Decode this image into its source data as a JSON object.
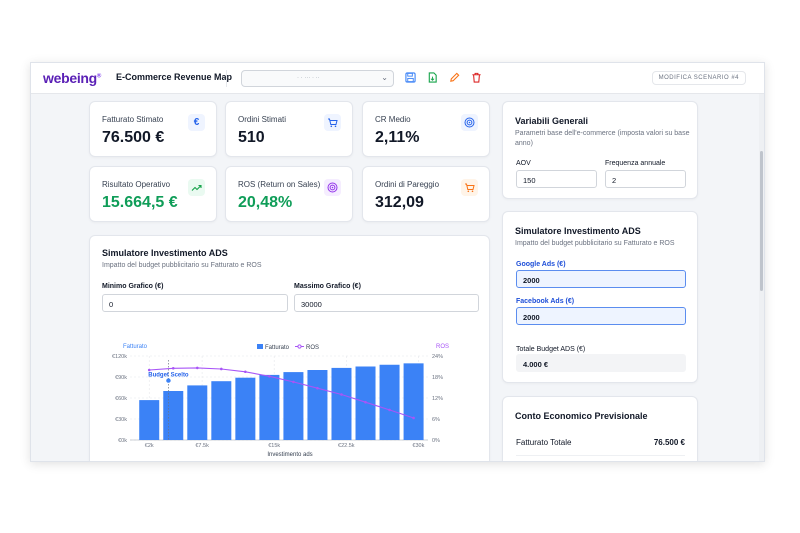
{
  "header": {
    "logo": "webeing",
    "logo_mark": "®",
    "title": "E-Commerce Revenue Map",
    "selector_text": "· · ··· · ··",
    "scenario_button": "MODIFICA SCENARIO #4"
  },
  "kpis": [
    {
      "label": "Fatturato Stimato",
      "value": "76.500 €",
      "icon": "euro-icon",
      "icon_char": "€",
      "color": "#111827"
    },
    {
      "label": "Ordini Stimati",
      "value": "510",
      "icon": "cart-icon",
      "icon_char": "🛒",
      "color": "#111827"
    },
    {
      "label": "CR Medio",
      "value": "2,11%",
      "icon": "target-icon",
      "icon_char": "◎",
      "color": "#111827"
    },
    {
      "label": "Risultato Operativo",
      "value": "15.664,5 €",
      "icon": "trending-up-icon",
      "icon_char": "↗",
      "color": "#0f9d58"
    },
    {
      "label": "ROS (Return on Sales)",
      "value": "20,48%",
      "icon": "target-icon",
      "icon_char": "◎",
      "color": "#0f9d58"
    },
    {
      "label": "Ordini di Pareggio",
      "value": "312,09",
      "icon": "cart-icon",
      "icon_char": "🛒",
      "color": "#111827"
    }
  ],
  "simulator_main": {
    "title": "Simulatore Investimento ADS",
    "subtitle": "Impatto del budget pubblicitario su Fatturato e ROS",
    "min_label": "Minimo Grafico (€)",
    "min_value": "0",
    "max_label": "Massimo Grafico (€)",
    "max_value": "30000"
  },
  "general_vars": {
    "title": "Variabili Generali",
    "subtitle": "Parametri base dell'e-commerce (imposta valori su base anno)",
    "aov_label": "AOV",
    "aov_value": "150",
    "freq_label": "Frequenza annuale",
    "freq_value": "2"
  },
  "simulator_side": {
    "title": "Simulatore Investimento ADS",
    "subtitle": "Impatto del budget pubblicitario su Fatturato e ROS",
    "google_label": "Google Ads (€)",
    "google_value": "2000",
    "facebook_label": "Facebook Ads (€)",
    "facebook_value": "2000",
    "total_label": "Totale Budget ADS (€)",
    "total_value": "4.000 €"
  },
  "conto": {
    "title": "Conto Economico Previsionale",
    "row_label": "Fatturato Totale",
    "row_value": "76.500 €"
  },
  "colors": {
    "bar": "#3b82f6",
    "ros_line": "#a855f7",
    "green": "#0f9d58",
    "brand": "#5b21b6"
  },
  "chart_data": {
    "type": "bar",
    "title": "",
    "xlabel": "Investimento ads",
    "ylabel": "Fatturato",
    "y2label": "ROS",
    "legend": [
      "Fatturato",
      "ROS"
    ],
    "legend_position": "top",
    "x_ticks": [
      "€2k",
      "€7.5k",
      "€15k",
      "€22.5k",
      "€30k"
    ],
    "y_ticks": [
      "€0k",
      "€30k",
      "€60k",
      "€90k",
      "€120k"
    ],
    "y2_ticks": [
      "0%",
      "6%",
      "12%",
      "18%",
      "24%"
    ],
    "ylim": [
      0,
      120000
    ],
    "y2lim": [
      0,
      24
    ],
    "annotation": "Budget Scelto",
    "annotation_x": 4000,
    "x": [
      2000,
      4500,
      7000,
      9500,
      12000,
      14500,
      17000,
      19500,
      22000,
      24500,
      27000,
      29500
    ],
    "series": [
      {
        "name": "Fatturato",
        "type": "bar",
        "values": [
          57000,
          70000,
          78000,
          84000,
          89000,
          93000,
          97000,
          100000,
          103000,
          105000,
          107500,
          109500
        ]
      },
      {
        "name": "ROS",
        "type": "line",
        "values": [
          20.0,
          20.5,
          20.6,
          20.3,
          19.5,
          18.2,
          16.6,
          14.8,
          13.0,
          10.8,
          8.6,
          6.3
        ]
      }
    ]
  }
}
